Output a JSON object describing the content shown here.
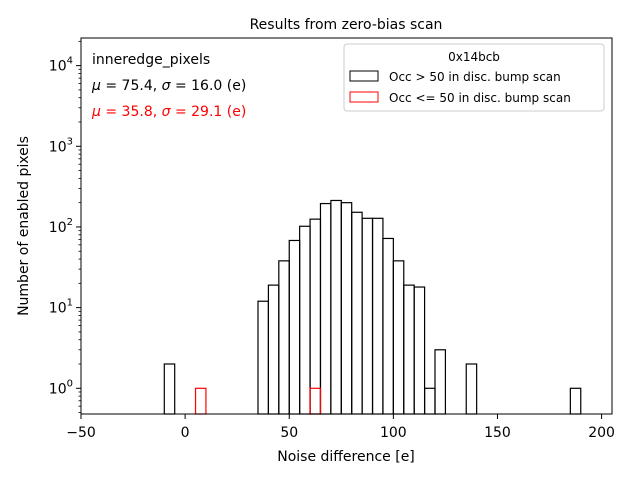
{
  "chart_data": {
    "type": "histogram",
    "title": "Results from zero-bias scan",
    "xlabel": "Noise difference [e]",
    "ylabel": "Number of enabled pixels",
    "xlim": [
      -50,
      205
    ],
    "ylim": [
      0.48,
      22000
    ],
    "yscale": "log",
    "grid": false,
    "legend_placement": "top-right",
    "legend_title": "0x14bcb",
    "x_ticks": [
      {
        "value": -50,
        "label": "−50"
      },
      {
        "value": 0,
        "label": "0"
      },
      {
        "value": 50,
        "label": "50"
      },
      {
        "value": 100,
        "label": "100"
      },
      {
        "value": 150,
        "label": "150"
      },
      {
        "value": 200,
        "label": "200"
      }
    ],
    "y_ticks": [
      {
        "value": 1,
        "base": "10",
        "exp": "0"
      },
      {
        "value": 10,
        "base": "10",
        "exp": "1"
      },
      {
        "value": 100,
        "base": "10",
        "exp": "2"
      },
      {
        "value": 1000,
        "base": "10",
        "exp": "3"
      },
      {
        "value": 10000,
        "base": "10",
        "exp": "4"
      }
    ],
    "annotations": {
      "label": "inneredge_pixels",
      "series1_stats": {
        "mu_sym": "μ",
        "mu_text": " = 75.4, ",
        "sigma_sym": "σ",
        "sigma_text": " = 16.0 (e)"
      },
      "series2_stats": {
        "mu_sym": "μ",
        "mu_text": " = 35.8, ",
        "sigma_sym": "σ",
        "sigma_text": " = 29.1 (e)"
      }
    },
    "series": [
      {
        "name": "Occ > 50 in disc. bump scan",
        "color": "#000000",
        "bins": [
          {
            "x0": -10,
            "x1": -5,
            "count": 2
          },
          {
            "x0": 35,
            "x1": 40,
            "count": 12
          },
          {
            "x0": 40,
            "x1": 45,
            "count": 19
          },
          {
            "x0": 45,
            "x1": 50,
            "count": 38
          },
          {
            "x0": 50,
            "x1": 55,
            "count": 68
          },
          {
            "x0": 55,
            "x1": 60,
            "count": 102
          },
          {
            "x0": 60,
            "x1": 65,
            "count": 125
          },
          {
            "x0": 65,
            "x1": 70,
            "count": 195
          },
          {
            "x0": 70,
            "x1": 75,
            "count": 213
          },
          {
            "x0": 75,
            "x1": 80,
            "count": 200
          },
          {
            "x0": 80,
            "x1": 85,
            "count": 152
          },
          {
            "x0": 85,
            "x1": 90,
            "count": 128
          },
          {
            "x0": 90,
            "x1": 95,
            "count": 128
          },
          {
            "x0": 95,
            "x1": 100,
            "count": 72
          },
          {
            "x0": 100,
            "x1": 105,
            "count": 38
          },
          {
            "x0": 105,
            "x1": 110,
            "count": 19
          },
          {
            "x0": 110,
            "x1": 115,
            "count": 18
          },
          {
            "x0": 115,
            "x1": 120,
            "count": 1
          },
          {
            "x0": 120,
            "x1": 125,
            "count": 3
          },
          {
            "x0": 135,
            "x1": 140,
            "count": 2
          },
          {
            "x0": 185,
            "x1": 190,
            "count": 1
          }
        ]
      },
      {
        "name": "Occ <= 50 in disc. bump scan",
        "color": "#ff0000",
        "bins": [
          {
            "x0": 5,
            "x1": 10,
            "count": 1
          },
          {
            "x0": 60,
            "x1": 65,
            "count": 1
          }
        ]
      }
    ]
  }
}
